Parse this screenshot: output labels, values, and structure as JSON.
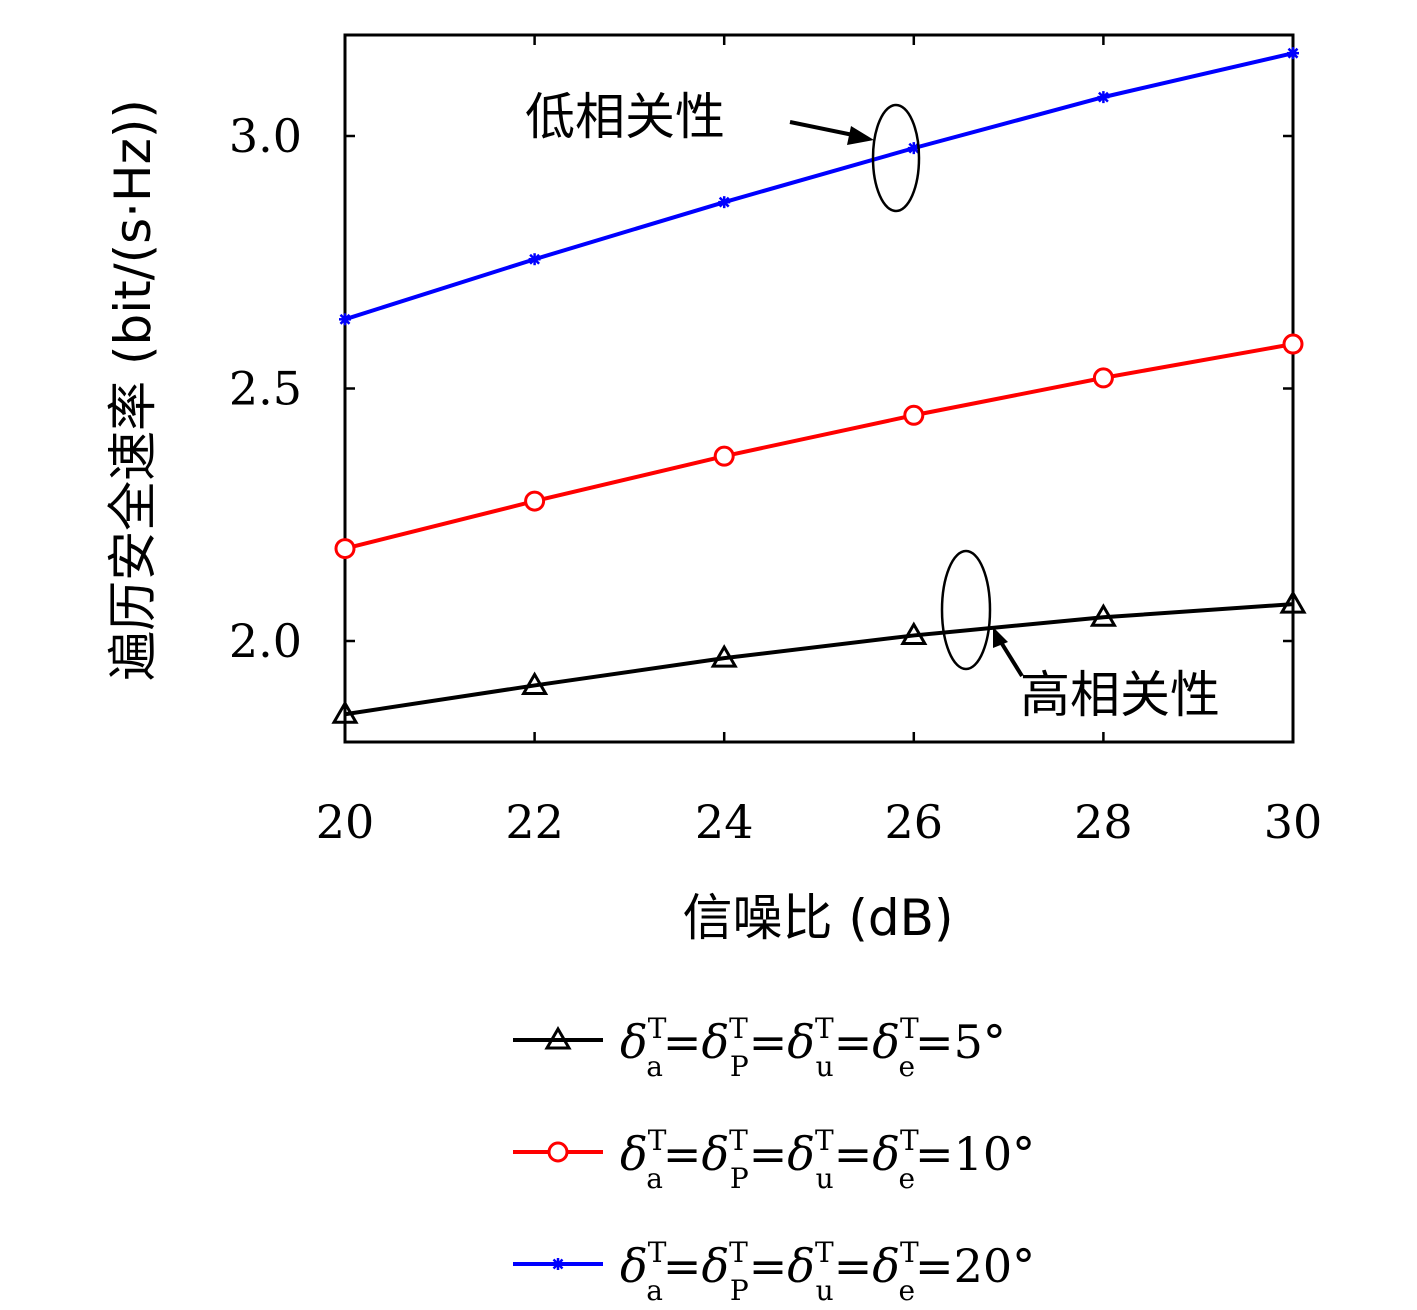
{
  "chart_data": {
    "type": "line",
    "x": [
      20,
      22,
      24,
      26,
      28,
      30
    ],
    "xlabel": "信噪比 (dB)",
    "ylabel": "遍历安全速率 (bit/(s·Hz))",
    "xlim": [
      20,
      30
    ],
    "ylim": [
      1.8,
      3.2
    ],
    "xticks": [
      "20",
      "22",
      "24",
      "26",
      "28",
      "30"
    ],
    "yticks": [
      {
        "value": 2.0,
        "label": "2.0"
      },
      {
        "value": 2.5,
        "label": "2.5"
      },
      {
        "value": 3.0,
        "label": "3.0"
      }
    ],
    "grid": false,
    "legend_position": "bottom",
    "series": [
      {
        "name": "δaT=δPT=δuT=δeT=5°",
        "value_label": "5°",
        "color": "#000000",
        "marker": "triangle",
        "values": [
          1.855,
          1.912,
          1.966,
          2.011,
          2.047,
          2.073
        ]
      },
      {
        "name": "δaT=δPT=δuT=δeT=10°",
        "value_label": "10°",
        "color": "#ff0000",
        "marker": "circle",
        "values": [
          2.183,
          2.277,
          2.366,
          2.447,
          2.521,
          2.588
        ]
      },
      {
        "name": "δaT=δPT=δuT=δeT=20°",
        "value_label": "20°",
        "color": "#0000ff",
        "marker": "asterisk",
        "values": [
          2.637,
          2.756,
          2.869,
          2.976,
          3.077,
          3.164
        ]
      }
    ],
    "legend_symbols": {
      "delta": "δ",
      "sup": "T",
      "subs": [
        "a",
        "P",
        "u",
        "e"
      ],
      "eq": "="
    },
    "annotations": {
      "low": "低相关性",
      "high": "高相关性"
    }
  }
}
